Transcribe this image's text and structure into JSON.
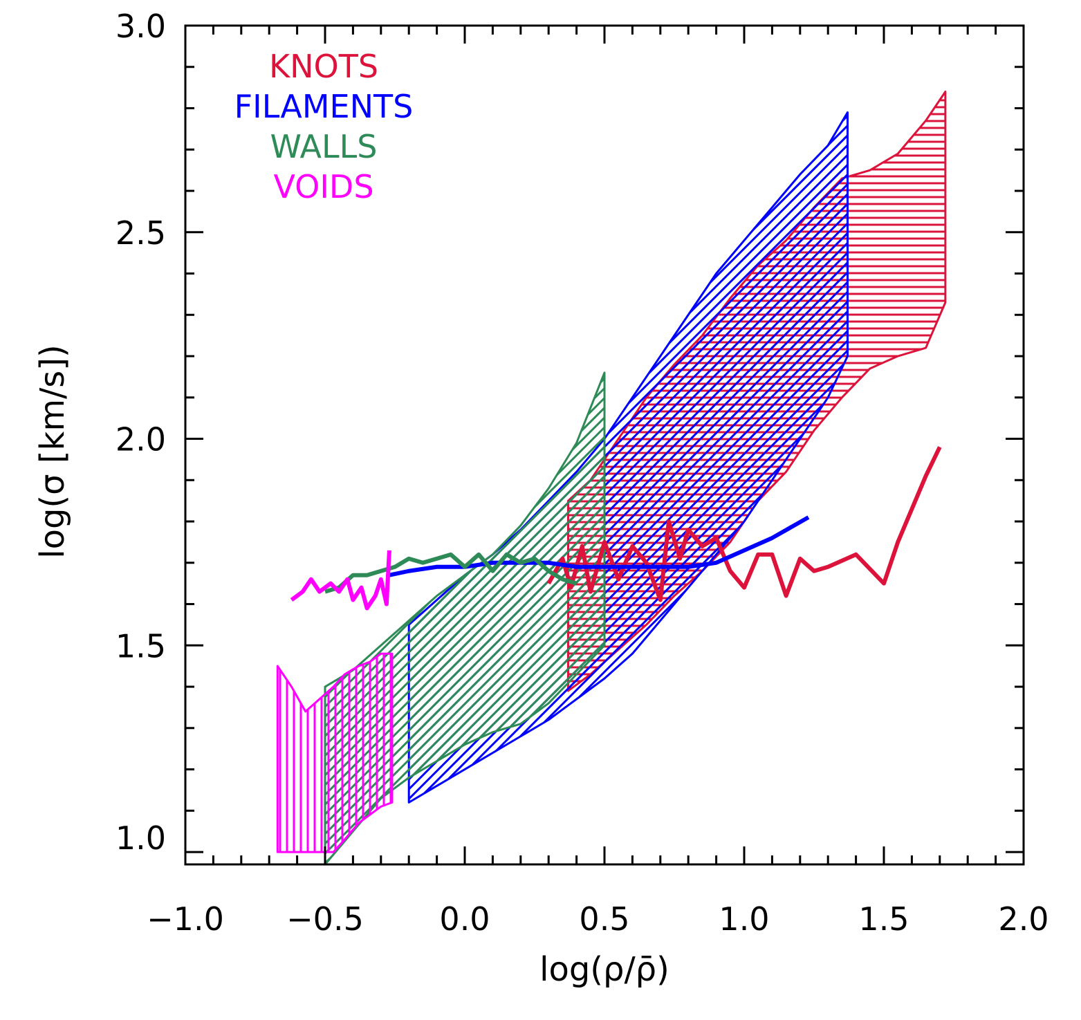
{
  "chart_data": {
    "type": "area",
    "title": "",
    "xlabel": "log(ρ/ρ̄)",
    "ylabel": "log(σ [km/s])",
    "xlim": [
      -1.0,
      2.0
    ],
    "ylim": [
      0.97,
      3.0
    ],
    "xticks": [
      "−1.0",
      "−0.5",
      "0.0",
      "0.5",
      "1.0",
      "1.5",
      "2.0"
    ],
    "yticks": [
      "1.0",
      "1.5",
      "2.0",
      "2.5",
      "3.0"
    ],
    "legend_position": "top-left",
    "series": [
      {
        "name": "KNOTS",
        "color": "#DC143C",
        "hatch": "horizontal",
        "band_x": [
          0.37,
          0.45,
          0.55,
          0.65,
          0.75,
          0.85,
          0.95,
          1.05,
          1.15,
          1.25,
          1.35,
          1.45,
          1.55,
          1.65,
          1.72
        ],
        "band_upper": [
          1.85,
          1.9,
          2.0,
          2.1,
          2.18,
          2.25,
          2.34,
          2.42,
          2.48,
          2.56,
          2.63,
          2.65,
          2.69,
          2.77,
          2.84
        ],
        "band_lower": [
          1.39,
          1.43,
          1.49,
          1.55,
          1.62,
          1.68,
          1.75,
          1.85,
          1.92,
          2.02,
          2.1,
          2.17,
          2.2,
          2.22,
          2.33
        ],
        "median_x": [
          0.3,
          0.35,
          0.38,
          0.42,
          0.45,
          0.5,
          0.55,
          0.6,
          0.65,
          0.7,
          0.73,
          0.77,
          0.8,
          0.85,
          0.9,
          0.95,
          1.0,
          1.05,
          1.1,
          1.15,
          1.2,
          1.25,
          1.3,
          1.4,
          1.5,
          1.55,
          1.6,
          1.65,
          1.7
        ],
        "median_y": [
          1.65,
          1.71,
          1.64,
          1.74,
          1.63,
          1.75,
          1.66,
          1.74,
          1.7,
          1.61,
          1.8,
          1.71,
          1.78,
          1.74,
          1.76,
          1.68,
          1.64,
          1.72,
          1.72,
          1.62,
          1.71,
          1.68,
          1.69,
          1.72,
          1.65,
          1.75,
          1.83,
          1.91,
          1.98
        ]
      },
      {
        "name": "FILAMENTS",
        "color": "#0000FF",
        "hatch": "diagonal",
        "band_x": [
          -0.2,
          -0.1,
          0.0,
          0.1,
          0.2,
          0.3,
          0.4,
          0.5,
          0.6,
          0.7,
          0.8,
          0.9,
          1.0,
          1.1,
          1.2,
          1.3,
          1.37
        ],
        "band_upper": [
          1.55,
          1.61,
          1.67,
          1.72,
          1.78,
          1.85,
          1.92,
          2.0,
          2.1,
          2.2,
          2.3,
          2.4,
          2.48,
          2.56,
          2.64,
          2.71,
          2.79
        ],
        "band_lower": [
          1.12,
          1.16,
          1.2,
          1.24,
          1.28,
          1.32,
          1.37,
          1.42,
          1.48,
          1.56,
          1.64,
          1.72,
          1.8,
          1.9,
          2.0,
          2.1,
          2.2
        ],
        "median_x": [
          -0.27,
          -0.2,
          -0.1,
          0.0,
          0.1,
          0.2,
          0.3,
          0.4,
          0.5,
          0.6,
          0.7,
          0.8,
          0.9,
          1.0,
          1.1,
          1.23
        ],
        "median_y": [
          1.67,
          1.68,
          1.69,
          1.69,
          1.7,
          1.7,
          1.7,
          1.69,
          1.69,
          1.69,
          1.69,
          1.69,
          1.7,
          1.73,
          1.76,
          1.81
        ]
      },
      {
        "name": "WALLS",
        "color": "#2E8B57",
        "hatch": "diagonal",
        "band_x": [
          -0.5,
          -0.4,
          -0.3,
          -0.2,
          -0.1,
          0.0,
          0.1,
          0.2,
          0.3,
          0.4,
          0.5
        ],
        "band_upper": [
          1.4,
          1.44,
          1.5,
          1.56,
          1.62,
          1.67,
          1.72,
          1.79,
          1.88,
          1.99,
          2.16
        ],
        "band_lower": [
          0.97,
          1.05,
          1.13,
          1.18,
          1.22,
          1.26,
          1.29,
          1.31,
          1.36,
          1.43,
          1.5
        ],
        "median_x": [
          -0.5,
          -0.45,
          -0.4,
          -0.35,
          -0.3,
          -0.25,
          -0.2,
          -0.15,
          -0.1,
          -0.05,
          0.0,
          0.05,
          0.1,
          0.15,
          0.2,
          0.25,
          0.3,
          0.35,
          0.4
        ],
        "median_y": [
          1.63,
          1.64,
          1.67,
          1.67,
          1.68,
          1.69,
          1.71,
          1.7,
          1.71,
          1.72,
          1.69,
          1.72,
          1.68,
          1.72,
          1.7,
          1.71,
          1.68,
          1.66,
          1.65
        ]
      },
      {
        "name": "VOIDS",
        "color": "#FF00FF",
        "hatch": "vertical",
        "band_x": [
          -0.67,
          -0.62,
          -0.57,
          -0.52,
          -0.47,
          -0.43,
          -0.38,
          -0.34,
          -0.3,
          -0.26
        ],
        "band_upper": [
          1.45,
          1.4,
          1.34,
          1.37,
          1.4,
          1.43,
          1.45,
          1.46,
          1.48,
          1.48
        ],
        "band_lower": [
          1.0,
          1.0,
          1.0,
          1.0,
          1.0,
          1.03,
          1.07,
          1.09,
          1.11,
          1.12
        ],
        "median_x": [
          -0.62,
          -0.58,
          -0.55,
          -0.52,
          -0.48,
          -0.45,
          -0.42,
          -0.4,
          -0.37,
          -0.35,
          -0.32,
          -0.3,
          -0.28,
          -0.27
        ],
        "median_y": [
          1.61,
          1.63,
          1.66,
          1.63,
          1.65,
          1.63,
          1.66,
          1.61,
          1.64,
          1.59,
          1.62,
          1.66,
          1.6,
          1.73
        ]
      }
    ]
  }
}
